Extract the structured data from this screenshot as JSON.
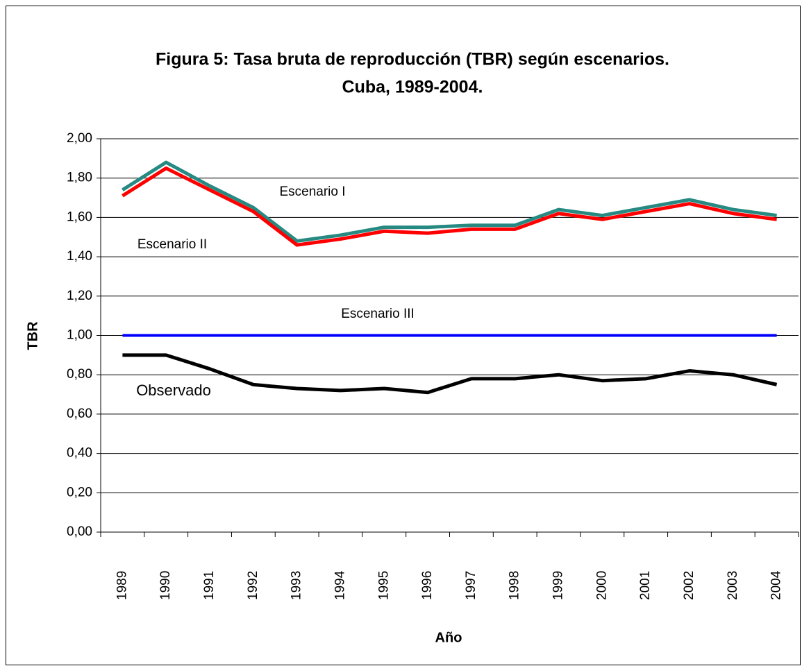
{
  "chart_data": {
    "type": "line",
    "title": [
      "Figura 5: Tasa bruta de reproducción (TBR) según escenarios.",
      "Cuba, 1989-2004."
    ],
    "x_label": "Año",
    "y_label": "TBR",
    "categories": [
      "1989",
      "1990",
      "1991",
      "1992",
      "1993",
      "1994",
      "1995",
      "1996",
      "1997",
      "1998",
      "1999",
      "2000",
      "2001",
      "2002",
      "2003",
      "2004"
    ],
    "series": [
      {
        "name": "Escenario  I",
        "color": "#268a82",
        "values": [
          1.74,
          1.88,
          1.76,
          1.65,
          1.48,
          1.51,
          1.55,
          1.55,
          1.56,
          1.56,
          1.64,
          1.61,
          1.65,
          1.69,
          1.64,
          1.61
        ]
      },
      {
        "name": "Escenario II",
        "color": "#ff0000",
        "values": [
          1.71,
          1.85,
          1.74,
          1.63,
          1.46,
          1.49,
          1.53,
          1.52,
          1.54,
          1.54,
          1.62,
          1.59,
          1.63,
          1.67,
          1.62,
          1.59
        ]
      },
      {
        "name": "Escenario III",
        "color": "#0000ff",
        "values": [
          1,
          1,
          1,
          1,
          1,
          1,
          1,
          1,
          1,
          1,
          1,
          1,
          1,
          1,
          1,
          1
        ]
      },
      {
        "name": "Observado",
        "color": "#000000",
        "values": [
          0.9,
          0.9,
          0.83,
          0.75,
          0.73,
          0.72,
          0.73,
          0.71,
          0.78,
          0.78,
          0.8,
          0.77,
          0.78,
          0.82,
          0.8,
          0.75
        ]
      }
    ],
    "ylim": [
      0,
      2
    ],
    "yticks": [
      {
        "value": 0,
        "label": "0,00"
      },
      {
        "value": 0.2,
        "label": "0,20"
      },
      {
        "value": 0.4,
        "label": "0,40"
      },
      {
        "value": 0.6,
        "label": "0,60"
      },
      {
        "value": 0.8,
        "label": "0,80"
      },
      {
        "value": 1,
        "label": "1,00"
      },
      {
        "value": 1.2,
        "label": "1,20"
      },
      {
        "value": 1.4,
        "label": "1,40"
      },
      {
        "value": 1.6,
        "label": "1,60"
      },
      {
        "value": 1.8,
        "label": "1,80"
      },
      {
        "value": 2,
        "label": "2,00"
      }
    ],
    "grid": true
  }
}
